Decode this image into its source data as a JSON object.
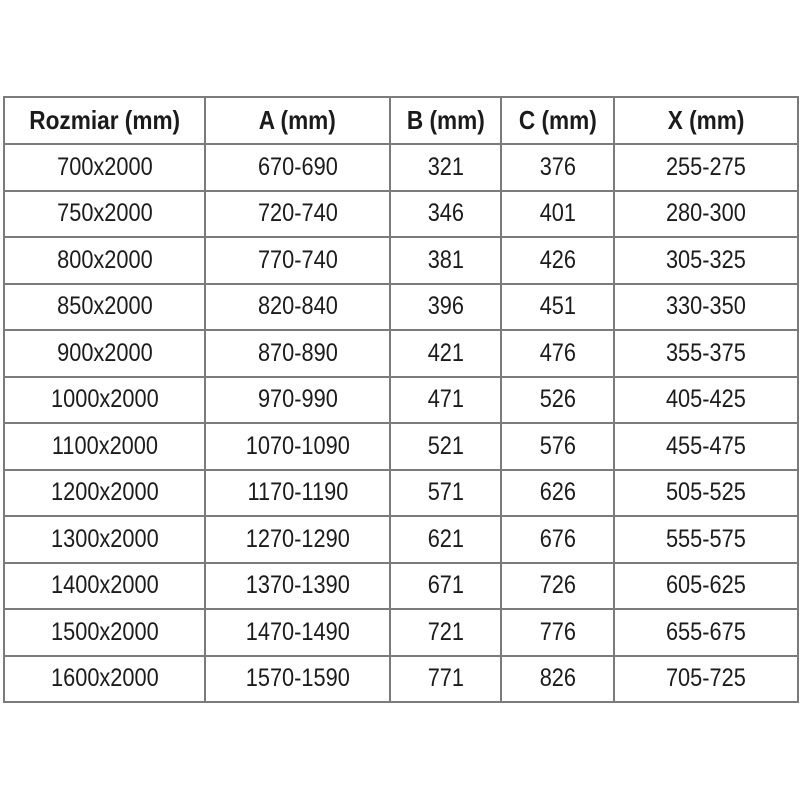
{
  "page": {
    "background_color": "#ffffff",
    "text_color": "#1b1b1b",
    "grid_line_color": "#7b7b7b"
  },
  "table": {
    "headers": [
      "Rozmiar (mm)",
      "A (mm)",
      "B (mm)",
      "C (mm)",
      "X (mm)"
    ],
    "rows": [
      [
        "700x2000",
        "670-690",
        "321",
        "376",
        "255-275"
      ],
      [
        "750x2000",
        "720-740",
        "346",
        "401",
        "280-300"
      ],
      [
        "800x2000",
        "770-740",
        "381",
        "426",
        "305-325"
      ],
      [
        "850x2000",
        "820-840",
        "396",
        "451",
        "330-350"
      ],
      [
        "900x2000",
        "870-890",
        "421",
        "476",
        "355-375"
      ],
      [
        "1000x2000",
        "970-990",
        "471",
        "526",
        "405-425"
      ],
      [
        "1100x2000",
        "1070-1090",
        "521",
        "576",
        "455-475"
      ],
      [
        "1200x2000",
        "1170-1190",
        "571",
        "626",
        "505-525"
      ],
      [
        "1300x2000",
        "1270-1290",
        "621",
        "676",
        "555-575"
      ],
      [
        "1400x2000",
        "1370-1390",
        "671",
        "726",
        "605-625"
      ],
      [
        "1500x2000",
        "1470-1490",
        "721",
        "776",
        "655-675"
      ],
      [
        "1600x2000",
        "1570-1590",
        "771",
        "826",
        "705-725"
      ]
    ]
  },
  "chart_data": {
    "type": "table",
    "title": "",
    "columns": [
      "Rozmiar (mm)",
      "A (mm)",
      "B (mm)",
      "C (mm)",
      "X (mm)"
    ],
    "rows": [
      [
        "700x2000",
        "670-690",
        "321",
        "376",
        "255-275"
      ],
      [
        "750x2000",
        "720-740",
        "346",
        "401",
        "280-300"
      ],
      [
        "800x2000",
        "770-740",
        "381",
        "426",
        "305-325"
      ],
      [
        "850x2000",
        "820-840",
        "396",
        "451",
        "330-350"
      ],
      [
        "900x2000",
        "870-890",
        "421",
        "476",
        "355-375"
      ],
      [
        "1000x2000",
        "970-990",
        "471",
        "526",
        "405-425"
      ],
      [
        "1100x2000",
        "1070-1090",
        "521",
        "576",
        "455-475"
      ],
      [
        "1200x2000",
        "1170-1190",
        "571",
        "626",
        "505-525"
      ],
      [
        "1300x2000",
        "1270-1290",
        "621",
        "676",
        "555-575"
      ],
      [
        "1400x2000",
        "1370-1390",
        "671",
        "726",
        "605-625"
      ],
      [
        "1500x2000",
        "1470-1490",
        "721",
        "776",
        "655-675"
      ],
      [
        "1600x2000",
        "1570-1590",
        "771",
        "826",
        "705-725"
      ]
    ]
  }
}
